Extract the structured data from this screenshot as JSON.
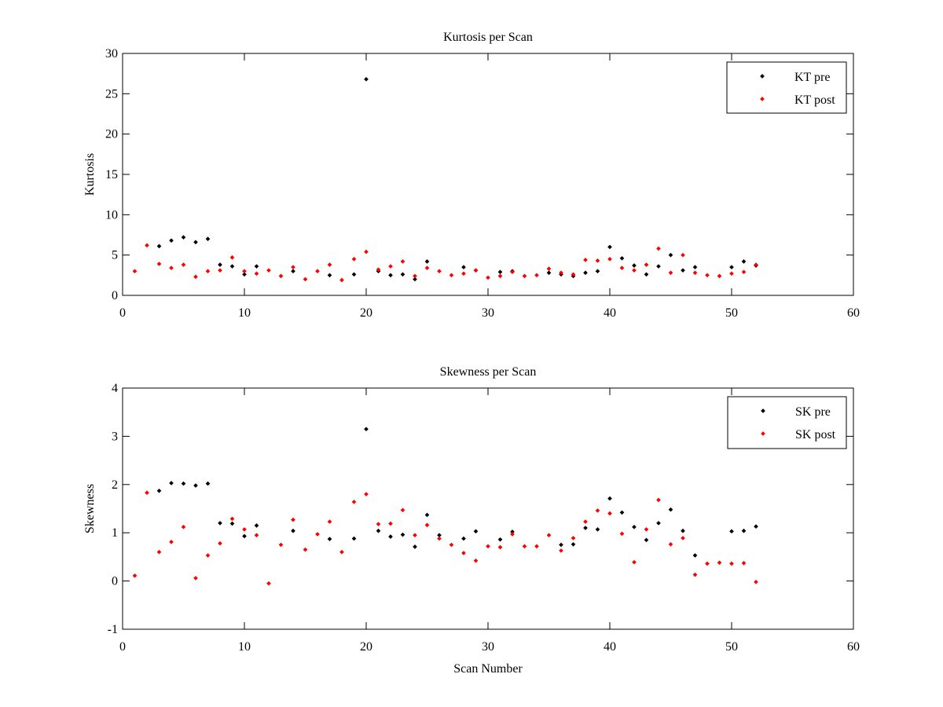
{
  "chart_data": [
    {
      "type": "scatter",
      "title": "Kurtosis per Scan",
      "xlabel": "",
      "ylabel": "Kurtosis",
      "xlim": [
        0,
        60
      ],
      "ylim": [
        0,
        30
      ],
      "xticks": [
        0,
        10,
        20,
        30,
        40,
        50,
        60
      ],
      "yticks": [
        0,
        5,
        10,
        15,
        20,
        25,
        30
      ],
      "grid": false,
      "legend": "top-right",
      "series": [
        {
          "name": "KT pre",
          "color": "#000000",
          "x": [
            3,
            4,
            5,
            6,
            7,
            8,
            9,
            10,
            11,
            14,
            17,
            19,
            20,
            21,
            22,
            23,
            24,
            25,
            28,
            29,
            31,
            32,
            35,
            36,
            37,
            38,
            39,
            40,
            41,
            42,
            43,
            44,
            45,
            46,
            47,
            50,
            51,
            52
          ],
          "y": [
            6.1,
            6.8,
            7.2,
            6.6,
            7.0,
            3.8,
            3.6,
            2.6,
            3.6,
            3.0,
            2.5,
            2.6,
            26.8,
            3.0,
            2.5,
            2.6,
            2.0,
            4.2,
            3.5,
            3.1,
            2.9,
            3.0,
            2.8,
            2.6,
            2.4,
            2.8,
            3.0,
            6.0,
            4.6,
            3.7,
            2.6,
            3.6,
            5.0,
            3.1,
            3.5,
            3.5,
            4.2,
            3.7
          ]
        },
        {
          "name": "KT post",
          "color": "#ff0000",
          "x": [
            1,
            2,
            3,
            4,
            5,
            6,
            7,
            8,
            9,
            10,
            11,
            12,
            13,
            14,
            15,
            16,
            17,
            18,
            19,
            20,
            21,
            22,
            23,
            24,
            25,
            26,
            27,
            28,
            29,
            30,
            31,
            32,
            33,
            34,
            35,
            36,
            37,
            38,
            39,
            40,
            41,
            42,
            43,
            44,
            45,
            46,
            47,
            48,
            49,
            50,
            51,
            52
          ],
          "y": [
            3.0,
            6.2,
            3.9,
            3.4,
            3.8,
            2.3,
            3.0,
            3.1,
            4.7,
            3.0,
            2.7,
            3.1,
            2.4,
            3.5,
            2.0,
            3.0,
            3.8,
            1.9,
            4.5,
            5.4,
            3.2,
            3.6,
            4.2,
            2.4,
            3.4,
            3.0,
            2.5,
            2.7,
            3.1,
            2.2,
            2.4,
            2.9,
            2.4,
            2.5,
            3.3,
            2.8,
            2.6,
            4.4,
            4.3,
            4.5,
            3.4,
            3.1,
            3.8,
            5.8,
            2.8,
            5.0,
            2.8,
            2.5,
            2.4,
            2.7,
            2.9,
            3.8
          ]
        }
      ]
    },
    {
      "type": "scatter",
      "title": "Skewness per Scan",
      "xlabel": "Scan Number",
      "ylabel": "Skewness",
      "xlim": [
        0,
        60
      ],
      "ylim": [
        -1,
        4
      ],
      "xticks": [
        0,
        10,
        20,
        30,
        40,
        50,
        60
      ],
      "yticks": [
        -1,
        0,
        1,
        2,
        3,
        4
      ],
      "grid": false,
      "legend": "top-right",
      "series": [
        {
          "name": "SK pre",
          "color": "#000000",
          "x": [
            3,
            4,
            5,
            6,
            7,
            8,
            9,
            10,
            11,
            14,
            17,
            19,
            20,
            21,
            22,
            23,
            24,
            25,
            26,
            28,
            29,
            31,
            32,
            36,
            37,
            38,
            39,
            40,
            41,
            42,
            43,
            44,
            45,
            46,
            47,
            50,
            51,
            52
          ],
          "y": [
            1.87,
            2.03,
            2.02,
            1.98,
            2.02,
            1.2,
            1.19,
            0.93,
            1.15,
            1.04,
            0.87,
            0.88,
            3.15,
            1.04,
            0.92,
            0.96,
            0.71,
            1.37,
            0.95,
            0.88,
            1.03,
            0.86,
            1.02,
            0.75,
            0.76,
            1.1,
            1.07,
            1.71,
            1.42,
            1.12,
            0.85,
            1.2,
            1.48,
            1.04,
            0.53,
            1.03,
            1.04,
            1.13
          ]
        },
        {
          "name": "SK post",
          "color": "#ff0000",
          "x": [
            1,
            2,
            3,
            4,
            5,
            6,
            7,
            8,
            9,
            10,
            11,
            12,
            13,
            14,
            15,
            16,
            17,
            18,
            19,
            20,
            21,
            22,
            23,
            24,
            25,
            26,
            27,
            28,
            29,
            30,
            31,
            32,
            33,
            34,
            35,
            36,
            37,
            38,
            39,
            40,
            41,
            42,
            43,
            44,
            45,
            46,
            47,
            48,
            49,
            50,
            51,
            52
          ],
          "y": [
            0.11,
            1.83,
            0.6,
            0.81,
            1.12,
            0.06,
            0.53,
            0.78,
            1.29,
            1.07,
            0.95,
            -0.05,
            0.75,
            1.27,
            0.65,
            0.97,
            1.23,
            0.6,
            1.64,
            1.8,
            1.18,
            1.19,
            1.47,
            0.95,
            1.16,
            0.88,
            0.75,
            0.58,
            0.42,
            0.72,
            0.7,
            0.97,
            0.72,
            0.72,
            0.95,
            0.63,
            0.89,
            1.23,
            1.46,
            1.4,
            0.98,
            0.39,
            1.07,
            1.68,
            0.76,
            0.89,
            0.13,
            0.36,
            0.38,
            0.36,
            0.37,
            -0.02
          ]
        }
      ]
    }
  ]
}
